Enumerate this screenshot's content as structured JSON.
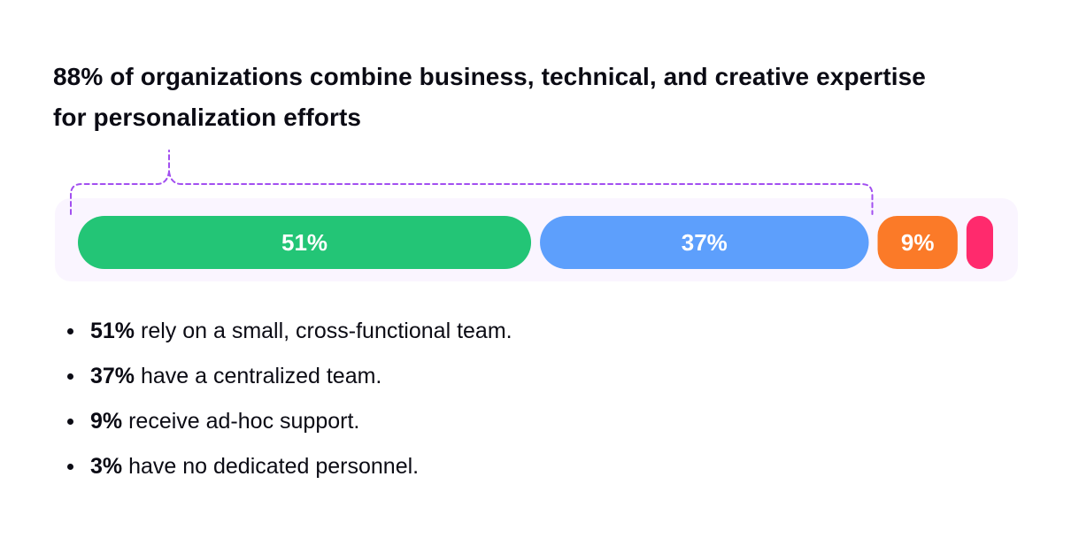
{
  "title": "88% of organizations combine business, technical, and creative expertise for personalization efforts",
  "chart_data": {
    "type": "bar",
    "orientation": "horizontal-stacked",
    "bracket_value": "88%",
    "segments": [
      {
        "label": "51%",
        "value": 51,
        "color": "#23c576"
      },
      {
        "label": "37%",
        "value": 37,
        "color": "#5d9ffc"
      },
      {
        "label": "9%",
        "value": 9,
        "color": "#fb7a28"
      },
      {
        "label": "",
        "value": 3,
        "color": "#ff2a6d"
      }
    ],
    "track_color": "#faf5ff",
    "bracket_color": "#a24ff0"
  },
  "bullets": [
    {
      "value": "51%",
      "text": " rely on a small, cross-functional team."
    },
    {
      "value": "37%",
      "text": " have a centralized team."
    },
    {
      "value": "9%",
      "text": " receive ad-hoc support."
    },
    {
      "value": "3%",
      "text": " have no dedicated personnel."
    }
  ]
}
